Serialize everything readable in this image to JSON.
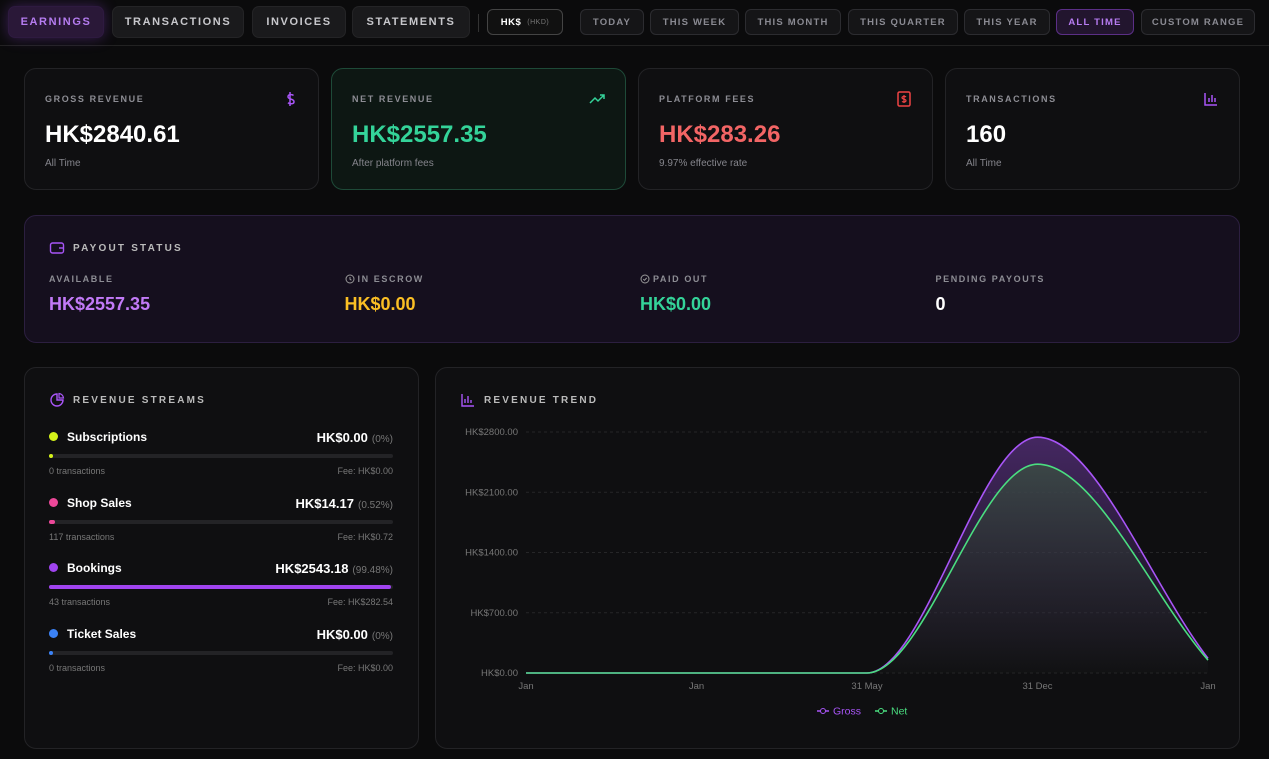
{
  "nav": {
    "tabs": [
      "EARNINGS",
      "TRANSACTIONS",
      "INVOICES",
      "STATEMENTS"
    ],
    "currency": "HK$",
    "currency_code": "(HKD)",
    "ranges": [
      "TODAY",
      "THIS WEEK",
      "THIS MONTH",
      "THIS QUARTER",
      "THIS YEAR",
      "ALL TIME",
      "CUSTOM RANGE"
    ],
    "active_range": "ALL TIME"
  },
  "stats": [
    {
      "label": "GROSS REVENUE",
      "value": "HK$2840.61",
      "note": "All Time",
      "color": "#ffffff"
    },
    {
      "label": "NET REVENUE",
      "value": "HK$2557.35",
      "note": "After platform fees",
      "color": "#34d399"
    },
    {
      "label": "PLATFORM FEES",
      "value": "HK$283.26",
      "note": "9.97% effective rate",
      "color": "#f26565"
    },
    {
      "label": "TRANSACTIONS",
      "value": "160",
      "note": "All Time",
      "color": "#ffffff"
    }
  ],
  "payout": {
    "title": "PAYOUT STATUS",
    "items": [
      {
        "label": "AVAILABLE",
        "value": "HK$2557.35",
        "color": "#c27af7"
      },
      {
        "label": "IN ESCROW",
        "value": "HK$0.00",
        "color": "#fbbf24"
      },
      {
        "label": "PAID OUT",
        "value": "HK$0.00",
        "color": "#34d399"
      },
      {
        "label": "PENDING PAYOUTS",
        "value": "0",
        "color": "#ffffff"
      }
    ]
  },
  "streams": {
    "title": "REVENUE STREAMS",
    "items": [
      {
        "name": "Subscriptions",
        "color": "#d4f21a",
        "amount": "HK$0.00",
        "percent": {
          "value": 0,
          "label": "(0%)"
        },
        "transactions": "0 transactions",
        "fee": "Fee: HK$0.00"
      },
      {
        "name": "Shop Sales",
        "color": "#ec4899",
        "amount": "HK$14.17",
        "percent": {
          "value": 0.52,
          "label": "(0.52%)"
        },
        "transactions": "117 transactions",
        "fee": "Fee: HK$0.72"
      },
      {
        "name": "Bookings",
        "color": "#a044f0",
        "amount": "HK$2543.18",
        "percent": {
          "value": 99.48,
          "label": "(99.48%)"
        },
        "transactions": "43 transactions",
        "fee": "Fee: HK$282.54"
      },
      {
        "name": "Ticket Sales",
        "color": "#3b82f6",
        "amount": "HK$0.00",
        "percent": {
          "value": 0,
          "label": "(0%)"
        },
        "transactions": "0 transactions",
        "fee": "Fee: HK$0.00"
      }
    ]
  },
  "chart_data": {
    "type": "line",
    "title": "REVENUE TREND",
    "categories": [
      "Jan",
      "Jan",
      "31 May",
      "31 Dec",
      "Jan"
    ],
    "series": [
      {
        "name": "Gross",
        "color": "#a855f7",
        "values": [
          0,
          0,
          0,
          2740,
          170
        ]
      },
      {
        "name": "Net",
        "color": "#4ade80",
        "values": [
          0,
          0,
          0,
          2426,
          150
        ]
      }
    ],
    "ylim": [
      0,
      2800
    ],
    "yticks": [
      {
        "value": 0,
        "label": "HK$0.00"
      },
      {
        "value": 700,
        "label": "HK$700.00"
      },
      {
        "value": 1400,
        "label": "HK$1400.00"
      },
      {
        "value": 2100,
        "label": "HK$2100.00"
      },
      {
        "value": 2800,
        "label": "HK$2800.00"
      }
    ],
    "grid": true,
    "legend": "bottom"
  }
}
